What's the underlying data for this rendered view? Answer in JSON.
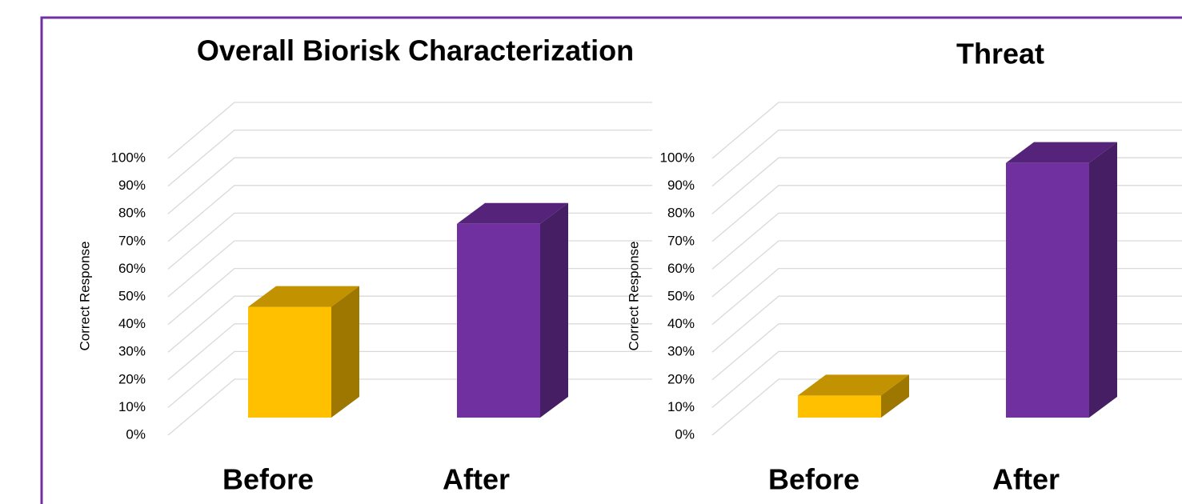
{
  "chart_data": [
    {
      "type": "bar3d",
      "title": "Overall Biorisk Characterization",
      "y_label": "Correct Response",
      "categories": [
        "Before",
        "After"
      ],
      "values": [
        40,
        70
      ],
      "colors": [
        "#FFC000",
        "#7030A0"
      ],
      "ylim": [
        0,
        100
      ],
      "yticks": [
        {
          "value": 0,
          "label": "0%"
        },
        {
          "value": 10,
          "label": "10%"
        },
        {
          "value": 20,
          "label": "20%"
        },
        {
          "value": 30,
          "label": "30%"
        },
        {
          "value": 40,
          "label": "40%"
        },
        {
          "value": 50,
          "label": "50%"
        },
        {
          "value": 60,
          "label": "60%"
        },
        {
          "value": 70,
          "label": "70%"
        },
        {
          "value": 80,
          "label": "80%"
        },
        {
          "value": 90,
          "label": "90%"
        },
        {
          "value": 100,
          "label": "100%"
        }
      ],
      "grid": true
    },
    {
      "type": "bar3d",
      "title": "Threat",
      "y_label": "Correct Response",
      "categories": [
        "Before",
        "After"
      ],
      "values": [
        8,
        92
      ],
      "colors": [
        "#FFC000",
        "#7030A0"
      ],
      "ylim": [
        0,
        100
      ],
      "yticks": [
        {
          "value": 0,
          "label": "0%"
        },
        {
          "value": 10,
          "label": "10%"
        },
        {
          "value": 20,
          "label": "20%"
        },
        {
          "value": 30,
          "label": "30%"
        },
        {
          "value": 40,
          "label": "40%"
        },
        {
          "value": 50,
          "label": "50%"
        },
        {
          "value": 60,
          "label": "60%"
        },
        {
          "value": 70,
          "label": "70%"
        },
        {
          "value": 80,
          "label": "80%"
        },
        {
          "value": 90,
          "label": "90%"
        },
        {
          "value": 100,
          "label": "100%"
        }
      ],
      "grid": true
    }
  ]
}
